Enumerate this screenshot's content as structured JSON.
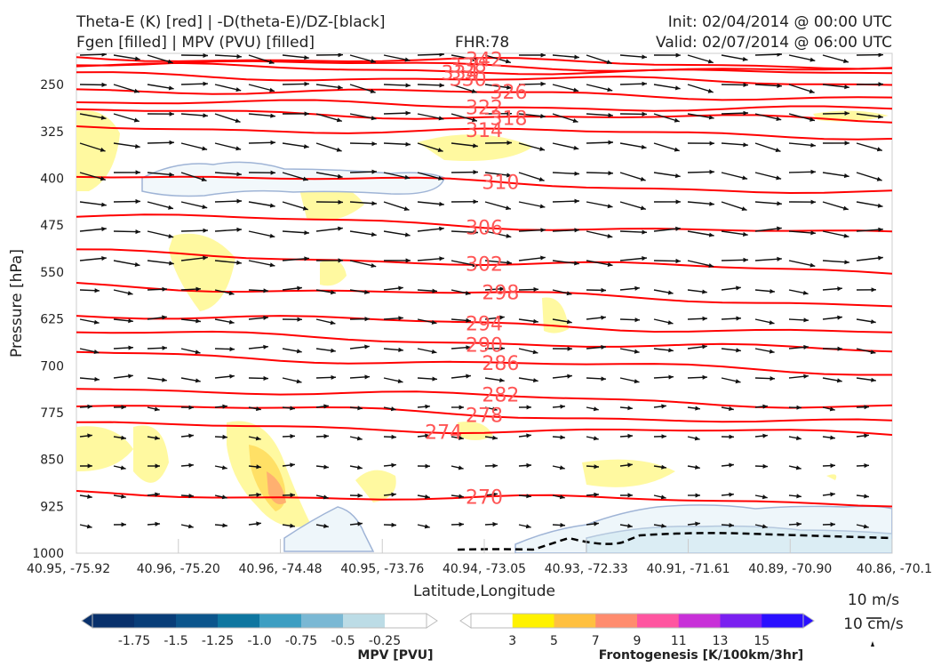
{
  "header": {
    "title_line1": "Theta-E (K) [red] | -D(theta-E)/DZ-[black]",
    "title_line2": "Fgen [filled] | MPV (PVU) [filled]",
    "fhr": "FHR:78",
    "init": "Init: 02/04/2014 @ 00:00 UTC",
    "valid": "Valid: 02/07/2014 @ 06:00 UTC"
  },
  "chart_data": {
    "type": "cross-section contour",
    "xlabel": "Latitude,Longitude",
    "ylabel": "Pressure [hPa]",
    "x_ticks": [
      "40.95, -75.92",
      "40.96, -75.20",
      "40.96, -74.48",
      "40.95, -73.76",
      "40.94, -73.05",
      "40.93, -72.33",
      "40.91, -71.61",
      "40.89, -70.90",
      "40.86, -70.1"
    ],
    "y_ticks": [
      250,
      325,
      400,
      475,
      550,
      625,
      700,
      775,
      850,
      925,
      1000
    ],
    "ylim": [
      1000,
      200
    ],
    "theta_e_color": "#ff0000",
    "theta_e_contours": [
      {
        "label": "342",
        "p": 206,
        "lx": 0.5
      },
      {
        "label": "338",
        "p": 213,
        "lx": 0.48
      },
      {
        "label": "334",
        "p": 220,
        "lx": 0.47
      },
      {
        "label": "330",
        "p": 234,
        "lx": 0.48
      },
      {
        "label": "326",
        "p": 257,
        "lx": 0.53
      },
      {
        "label": "322",
        "p": 277,
        "lx": 0.5
      },
      {
        "label": "318",
        "p": 293,
        "lx": 0.53
      },
      {
        "label": "314",
        "p": 318,
        "lx": 0.5
      },
      {
        "label": "310",
        "p": 392,
        "lx": 0.52
      },
      {
        "label": "306",
        "p": 459,
        "lx": 0.5
      },
      {
        "label": "302",
        "p": 519,
        "lx": 0.5
      },
      {
        "label": "298",
        "p": 570,
        "lx": 0.52
      },
      {
        "label": "294",
        "p": 617,
        "lx": 0.5
      },
      {
        "label": "290",
        "p": 646,
        "lx": 0.5
      },
      {
        "label": "286",
        "p": 680,
        "lx": 0.52
      },
      {
        "label": "282",
        "p": 734,
        "lx": 0.52
      },
      {
        "label": "278",
        "p": 762,
        "lx": 0.5
      },
      {
        "label": "274",
        "p": 795,
        "lx": 0.45
      },
      {
        "label": "270",
        "p": 905,
        "lx": 0.5
      }
    ],
    "wind_legend": {
      "line1": "10 m/s",
      "line2": "10 cm/s"
    },
    "mpv_colorbar": {
      "label": "MPV [PVU]",
      "ticks": [
        "-1.75",
        "-1.5",
        "-1.25",
        "-1.0",
        "-0.75",
        "-0.5",
        "-0.25"
      ],
      "colors": [
        "#08306b",
        "#083d78",
        "#0b558c",
        "#0e76a0",
        "#3c9ec2",
        "#7ab8d4",
        "#bcdce6",
        "#ffffff"
      ]
    },
    "fgen_colorbar": {
      "label": "Frontogenesis [K/100km/3hr]",
      "ticks": [
        "3",
        "5",
        "7",
        "9",
        "11",
        "13",
        "15"
      ],
      "colors": [
        "#ffffff",
        "#fff200",
        "#ffc040",
        "#ff8c6e",
        "#ff55a0",
        "#c830d8",
        "#7a20f0",
        "#2a10ff"
      ]
    }
  }
}
